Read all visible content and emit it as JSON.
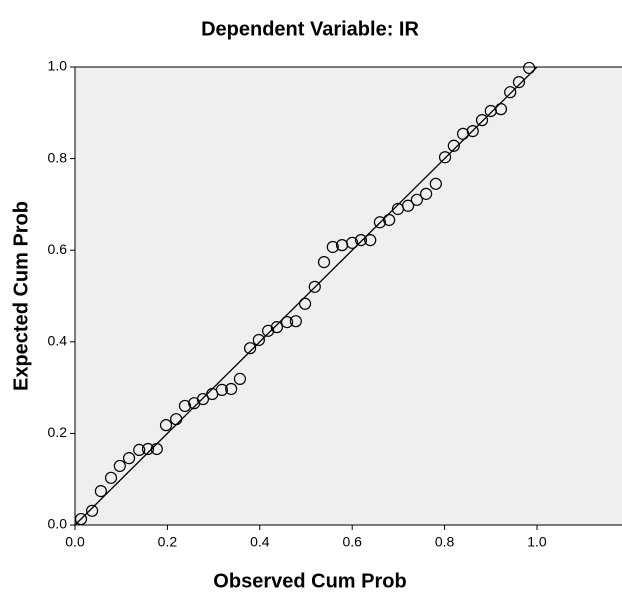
{
  "chart_data": {
    "type": "scatter",
    "title": "Dependent Variable: IR",
    "x_label": "Observed Cum Prob",
    "y_label": "Expected Cum Prob",
    "x": [
      0.013,
      0.037,
      0.056,
      0.078,
      0.097,
      0.117,
      0.139,
      0.158,
      0.177,
      0.197,
      0.219,
      0.238,
      0.258,
      0.277,
      0.297,
      0.318,
      0.338,
      0.357,
      0.379,
      0.398,
      0.418,
      0.437,
      0.459,
      0.478,
      0.498,
      0.519,
      0.539,
      0.558,
      0.578,
      0.6,
      0.619,
      0.639,
      0.66,
      0.68,
      0.699,
      0.721,
      0.74,
      0.76,
      0.781,
      0.801,
      0.82,
      0.84,
      0.861,
      0.881,
      0.9,
      0.922,
      0.942,
      0.961,
      0.983
    ],
    "values": [
      0.013,
      0.031,
      0.074,
      0.103,
      0.129,
      0.146,
      0.164,
      0.166,
      0.166,
      0.218,
      0.231,
      0.26,
      0.266,
      0.275,
      0.286,
      0.295,
      0.297,
      0.319,
      0.386,
      0.404,
      0.424,
      0.432,
      0.443,
      0.445,
      0.483,
      0.52,
      0.574,
      0.607,
      0.611,
      0.616,
      0.622,
      0.622,
      0.661,
      0.666,
      0.69,
      0.697,
      0.71,
      0.723,
      0.745,
      0.803,
      0.828,
      0.854,
      0.86,
      0.884,
      0.904,
      0.908,
      0.945,
      0.967,
      0.998
    ],
    "color": "#000000",
    "reference_line": {
      "x": [
        0,
        1
      ],
      "y": [
        0,
        1
      ]
    },
    "xlim": [
      0,
      1.184
    ],
    "ylim": [
      0,
      1
    ],
    "xticks": [
      {
        "value": 0,
        "label": "0.0"
      },
      0.2,
      0.4,
      0.6,
      0.8,
      {
        "value": 1,
        "label": "1.0"
      }
    ],
    "yticks": [
      {
        "value": 0,
        "label": "0.0"
      },
      0.2,
      0.4,
      0.6,
      0.8,
      {
        "value": 1,
        "label": "1.0"
      }
    ]
  }
}
